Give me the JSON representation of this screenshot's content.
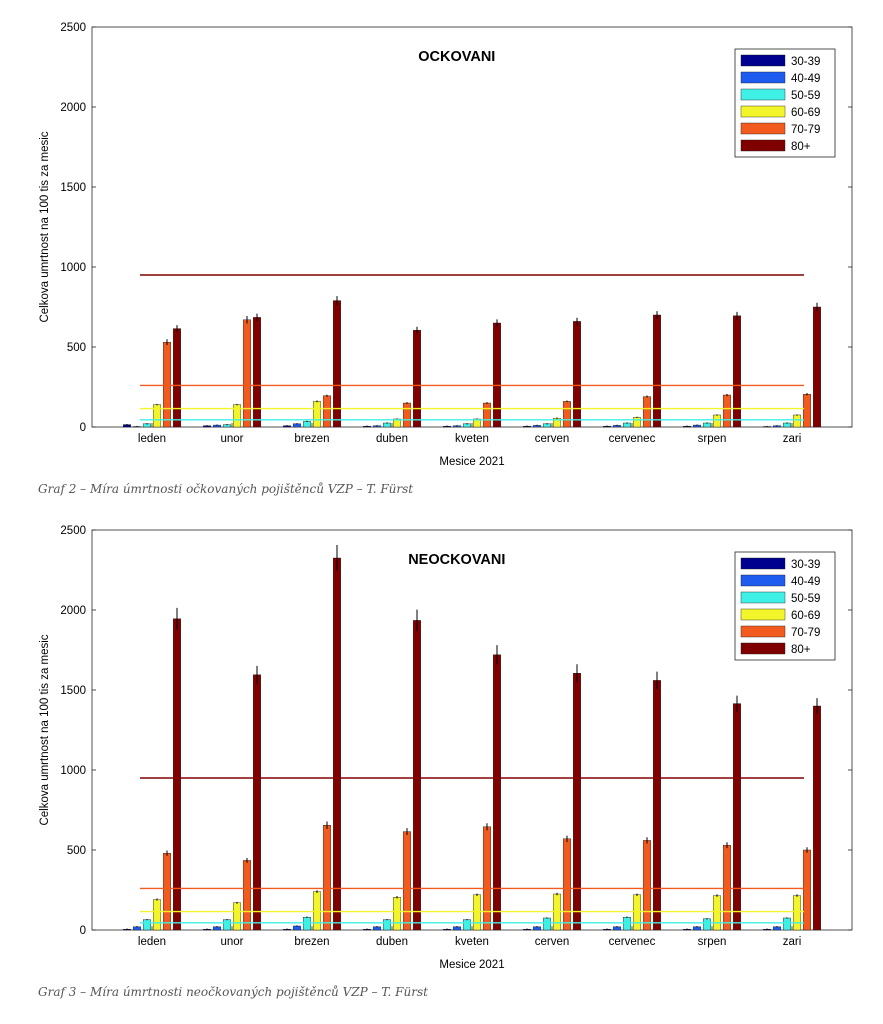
{
  "colors": {
    "30-39": "#00008f",
    "40-49": "#1e5cf0",
    "50-59": "#3ff0e6",
    "60-69": "#f2f52a",
    "70-79": "#f25a1e",
    "80+": "#800000"
  },
  "chart_data": [
    {
      "type": "bar",
      "title": "OCKOVANI",
      "xlabel": "Mesice 2021",
      "ylabel": "Celkova umrtnost na 100 tis za mesic",
      "ylim": [
        0,
        2500
      ],
      "yticks": [
        "0",
        "500",
        "1000",
        "1500",
        "2000",
        "2500"
      ],
      "categories": [
        "leden",
        "unor",
        "brezen",
        "duben",
        "kveten",
        "cerven",
        "cervenec",
        "srpen",
        "zari"
      ],
      "legend_position": "top-right",
      "series": [
        {
          "name": "30-39",
          "values": [
            15,
            8,
            8,
            5,
            5,
            5,
            5,
            5,
            3
          ]
        },
        {
          "name": "40-49",
          "values": [
            3,
            12,
            20,
            8,
            8,
            10,
            10,
            12,
            8
          ]
        },
        {
          "name": "50-59",
          "values": [
            20,
            15,
            35,
            25,
            20,
            20,
            25,
            25,
            25
          ]
        },
        {
          "name": "60-69",
          "values": [
            140,
            140,
            160,
            50,
            50,
            55,
            60,
            75,
            75
          ]
        },
        {
          "name": "70-79",
          "values": [
            530,
            670,
            195,
            150,
            150,
            160,
            190,
            200,
            205
          ]
        },
        {
          "name": "80+",
          "values": [
            615,
            685,
            790,
            605,
            650,
            660,
            700,
            695,
            750
          ]
        }
      ],
      "reference_lines": [
        {
          "series": "80+",
          "value": 950
        },
        {
          "series": "70-79",
          "value": 260
        },
        {
          "series": "60-69",
          "value": 115
        },
        {
          "series": "50-59",
          "value": 45
        }
      ],
      "caption": "Graf 2 – Míra úmrtnosti očkovaných pojištěnců VZP – T. Fürst"
    },
    {
      "type": "bar",
      "title": "NEOCKOVANI",
      "xlabel": "Mesice 2021",
      "ylabel": "Celkova umrtnost na 100 tis za mesic",
      "ylim": [
        0,
        2500
      ],
      "yticks": [
        "0",
        "500",
        "1000",
        "1500",
        "2000",
        "2500"
      ],
      "categories": [
        "leden",
        "unor",
        "brezen",
        "duben",
        "kveten",
        "cerven",
        "cervenec",
        "srpen",
        "zari"
      ],
      "legend_position": "top-right",
      "series": [
        {
          "name": "30-39",
          "values": [
            5,
            5,
            5,
            5,
            5,
            5,
            5,
            5,
            5
          ]
        },
        {
          "name": "40-49",
          "values": [
            20,
            20,
            25,
            20,
            20,
            20,
            20,
            20,
            20
          ]
        },
        {
          "name": "50-59",
          "values": [
            65,
            65,
            80,
            65,
            65,
            75,
            80,
            70,
            75
          ]
        },
        {
          "name": "60-69",
          "values": [
            190,
            170,
            240,
            205,
            220,
            225,
            220,
            215,
            215
          ]
        },
        {
          "name": "70-79",
          "values": [
            480,
            435,
            655,
            615,
            645,
            570,
            560,
            530,
            500
          ]
        },
        {
          "name": "80+",
          "values": [
            1945,
            1595,
            2325,
            1935,
            1720,
            1605,
            1560,
            1415,
            1400
          ]
        }
      ],
      "reference_lines": [
        {
          "series": "80+",
          "value": 950
        },
        {
          "series": "70-79",
          "value": 260
        },
        {
          "series": "60-69",
          "value": 115
        },
        {
          "series": "50-59",
          "value": 45
        }
      ],
      "caption": "Graf 3 – Míra úmrtnosti neočkovaných pojištěnců VZP – T. Fürst"
    }
  ]
}
